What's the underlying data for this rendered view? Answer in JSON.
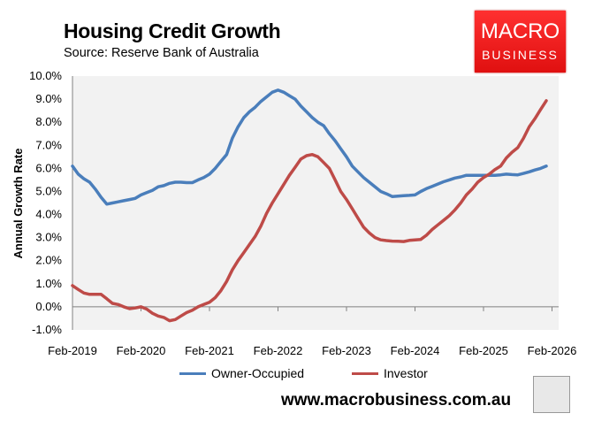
{
  "header": {
    "title": "Housing Credit Growth",
    "subtitle": "Source: Reserve Bank of Australia"
  },
  "logo": {
    "line1": "MACRO",
    "line2": "BUSINESS"
  },
  "footer": {
    "url": "www.macrobusiness.com.au"
  },
  "colors": {
    "owner_occupied": "#4a7ebb",
    "investor": "#be4b48",
    "plot_bg": "#f2f2f2",
    "logo_red": "#e8171d"
  },
  "chart_data": {
    "type": "line",
    "title": "Housing Credit Growth",
    "ylabel": "Annual Growth Rate",
    "xlabel": "",
    "ylim": [
      -1.0,
      10.0
    ],
    "yticks": [
      "-1.0%",
      "0.0%",
      "1.0%",
      "2.0%",
      "3.0%",
      "4.0%",
      "5.0%",
      "6.0%",
      "7.0%",
      "8.0%",
      "9.0%",
      "10.0%"
    ],
    "xticks": [
      "Feb-2019",
      "Feb-2020",
      "Feb-2021",
      "Feb-2022",
      "Feb-2023",
      "Feb-2024",
      "Feb-2025",
      "Feb-2026"
    ],
    "x_start": "Feb-2019",
    "x_frequency": "monthly",
    "legend_position": "bottom",
    "grid": false,
    "series": [
      {
        "name": "Owner-Occupied",
        "values": [
          6.1,
          5.75,
          5.55,
          5.4,
          5.1,
          4.75,
          4.45,
          4.5,
          4.55,
          4.6,
          4.65,
          4.7,
          4.85,
          4.95,
          5.05,
          5.2,
          5.25,
          5.35,
          5.4,
          5.4,
          5.38,
          5.38,
          5.5,
          5.6,
          5.75,
          6.0,
          6.3,
          6.6,
          7.3,
          7.8,
          8.2,
          8.45,
          8.65,
          8.9,
          9.1,
          9.3,
          9.39,
          9.3,
          9.15,
          9.0,
          8.7,
          8.45,
          8.2,
          8.0,
          7.85,
          7.5,
          7.2,
          6.85,
          6.5,
          6.1,
          5.85,
          5.6,
          5.4,
          5.2,
          5.0,
          4.9,
          4.78,
          4.8,
          4.82,
          4.83,
          4.85,
          5.0,
          5.12,
          5.22,
          5.32,
          5.42,
          5.5,
          5.58,
          5.63,
          5.7,
          5.7,
          5.7,
          5.7,
          5.7,
          5.7,
          5.72,
          5.75,
          5.73,
          5.72,
          5.78,
          5.85,
          5.93,
          6.0,
          6.1
        ]
      },
      {
        "name": "Investor",
        "values": [
          0.92,
          0.75,
          0.6,
          0.54,
          0.54,
          0.54,
          0.35,
          0.15,
          0.1,
          0.0,
          -0.08,
          -0.05,
          0.0,
          -0.1,
          -0.28,
          -0.4,
          -0.46,
          -0.6,
          -0.55,
          -0.4,
          -0.25,
          -0.15,
          0.0,
          0.1,
          0.2,
          0.4,
          0.7,
          1.1,
          1.6,
          2.0,
          2.35,
          2.7,
          3.05,
          3.5,
          4.05,
          4.5,
          4.9,
          5.3,
          5.7,
          6.05,
          6.4,
          6.55,
          6.6,
          6.5,
          6.25,
          6.0,
          5.5,
          5.0,
          4.65,
          4.25,
          3.85,
          3.45,
          3.2,
          3.0,
          2.9,
          2.87,
          2.85,
          2.84,
          2.83,
          2.88,
          2.9,
          2.92,
          3.1,
          3.35,
          3.55,
          3.75,
          3.95,
          4.2,
          4.5,
          4.85,
          5.1,
          5.4,
          5.6,
          5.75,
          5.95,
          6.1,
          6.45,
          6.7,
          6.9,
          7.3,
          7.8,
          8.15,
          8.55,
          8.93
        ]
      }
    ]
  }
}
